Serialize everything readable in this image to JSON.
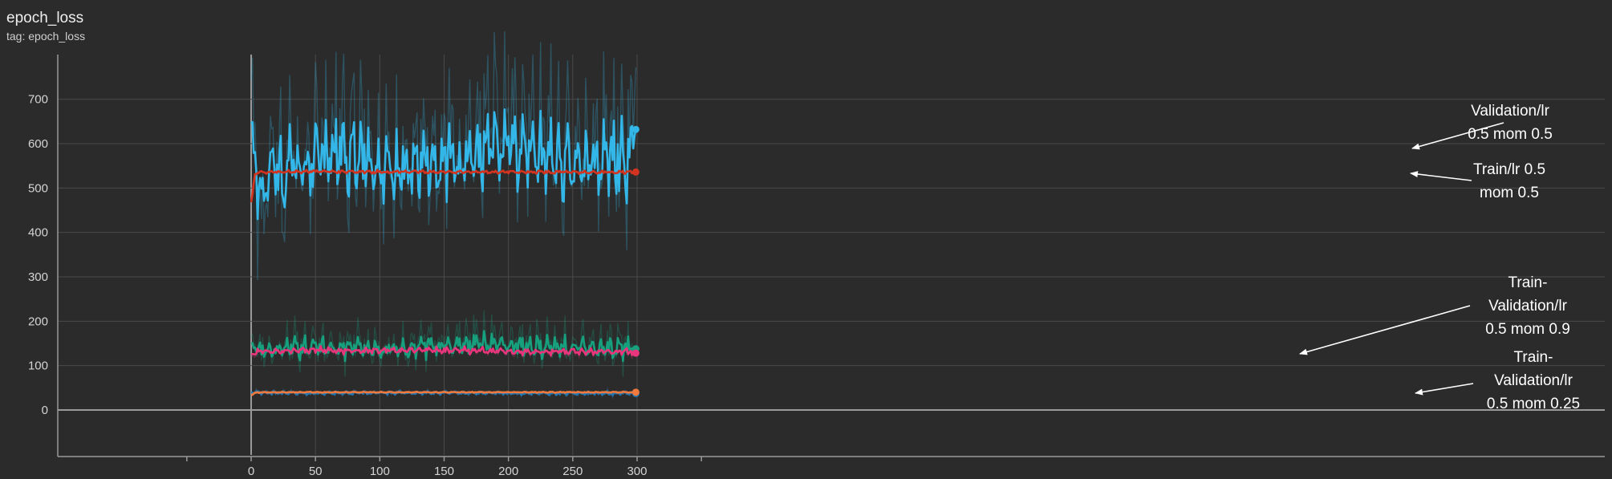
{
  "card": {
    "title": "epoch_loss",
    "subtitle": "tag: epoch_loss"
  },
  "colors": {
    "background": "#2b2b2b",
    "grid": "#4a4a4a",
    "axis": "#9a9a9a",
    "annotation": "#ffffff"
  },
  "chart_data": {
    "type": "line",
    "title": "epoch_loss",
    "subtitle": "tag: epoch_loss",
    "xlabel": "",
    "ylabel": "",
    "xlim": [
      -50,
      350
    ],
    "ylim": [
      -100,
      790
    ],
    "xticks": [
      0,
      50,
      100,
      150,
      200,
      250,
      300
    ],
    "yticks": [
      0,
      100,
      200,
      300,
      400,
      500,
      600,
      700
    ],
    "grid": true,
    "smoothing_shadow": true,
    "series": [
      {
        "key": "val_mom05",
        "color": "#33b7e8",
        "base": 535,
        "amp": 75,
        "noise": 45,
        "start": 645,
        "end": 632,
        "raw_amp": 2.1,
        "raw_color": "#33b7e8",
        "endpoint_label": "Validation/lr 0.5 mom 0.5",
        "keypoints": [
          [
            0,
            645
          ],
          [
            2,
            540
          ],
          [
            4,
            485
          ],
          [
            6,
            470
          ],
          [
            8,
            450
          ],
          [
            10,
            380
          ],
          [
            12,
            465
          ],
          [
            15,
            535
          ],
          [
            20,
            560
          ],
          [
            25,
            450
          ],
          [
            30,
            630
          ],
          [
            40,
            590
          ],
          [
            50,
            670
          ],
          [
            100,
            580
          ],
          [
            150,
            620
          ],
          [
            200,
            680
          ],
          [
            250,
            600
          ],
          [
            299,
            632
          ]
        ]
      },
      {
        "key": "train_mom05",
        "color": "#d2341f",
        "base": 536,
        "amp": 3,
        "noise": 2,
        "start": 468,
        "end": 536,
        "raw_amp": 0,
        "raw_color": "#d2341f",
        "endpoint_label": "Train/lr 0.5 mom 0.5",
        "keypoints": [
          [
            0,
            468
          ],
          [
            2,
            520
          ],
          [
            5,
            530
          ],
          [
            10,
            534
          ],
          [
            30,
            538
          ],
          [
            150,
            537
          ],
          [
            299,
            536
          ]
        ]
      },
      {
        "key": "val_mom09",
        "color": "#16a07e",
        "base": 135,
        "amp": 20,
        "noise": 12,
        "start": 150,
        "end": 138,
        "raw_amp": 2.2,
        "raw_color": "#16a07e",
        "endpoint_label": "Validation/lr 0.5 mom 0.9",
        "keypoints": [
          [
            0,
            150
          ],
          [
            10,
            130
          ],
          [
            50,
            160
          ],
          [
            100,
            140
          ],
          [
            180,
            180
          ],
          [
            250,
            150
          ],
          [
            299,
            138
          ]
        ]
      },
      {
        "key": "train_mom09",
        "color": "#e8357b",
        "base": 133,
        "amp": 6,
        "noise": 4,
        "start": 125,
        "end": 128,
        "raw_amp": 1.6,
        "raw_color": "#e8357b",
        "endpoint_label": "Train/lr 0.5 mom 0.9",
        "keypoints": [
          [
            0,
            125
          ],
          [
            50,
            138
          ],
          [
            100,
            135
          ],
          [
            150,
            140
          ],
          [
            200,
            130
          ],
          [
            299,
            128
          ]
        ]
      },
      {
        "key": "val_mom025",
        "color": "#1f77b4",
        "base": 38,
        "amp": 3,
        "noise": 2,
        "start": 40,
        "end": 37,
        "raw_amp": 1.8,
        "raw_color": "#3c8fd8",
        "endpoint_label": "Validation/lr 0.5 mom 0.25",
        "keypoints": [
          [
            0,
            40
          ],
          [
            50,
            38
          ],
          [
            100,
            41
          ],
          [
            200,
            37
          ],
          [
            299,
            37
          ]
        ]
      },
      {
        "key": "train_mom025",
        "color": "#f0793d",
        "base": 40,
        "amp": 1,
        "noise": 0.5,
        "start": 33,
        "end": 40,
        "raw_amp": 0,
        "raw_color": "#f0793d",
        "endpoint_label": "Train/lr 0.5 mom 0.25",
        "keypoints": [
          [
            0,
            33
          ],
          [
            5,
            38
          ],
          [
            20,
            40
          ],
          [
            150,
            40
          ],
          [
            299,
            40
          ]
        ]
      }
    ],
    "annotations": [
      {
        "key": "anno-val-mom05",
        "lines": [
          "Validation/lr",
          "0.5 mom 0.5"
        ],
        "points_to_series": "val_mom05"
      },
      {
        "key": "anno-train-mom05",
        "lines": [
          "Train/lr 0.5",
          "mom 0.5"
        ],
        "points_to_series": "train_mom05"
      },
      {
        "key": "anno-mom09",
        "lines": [
          "Train-",
          "Validation/lr",
          "0.5 mom 0.9"
        ],
        "points_to_series": "train_mom09"
      },
      {
        "key": "anno-mom025",
        "lines": [
          "Train-",
          "Validation/lr",
          "0.5 mom 0.25"
        ],
        "points_to_series": "train_mom025"
      }
    ]
  }
}
